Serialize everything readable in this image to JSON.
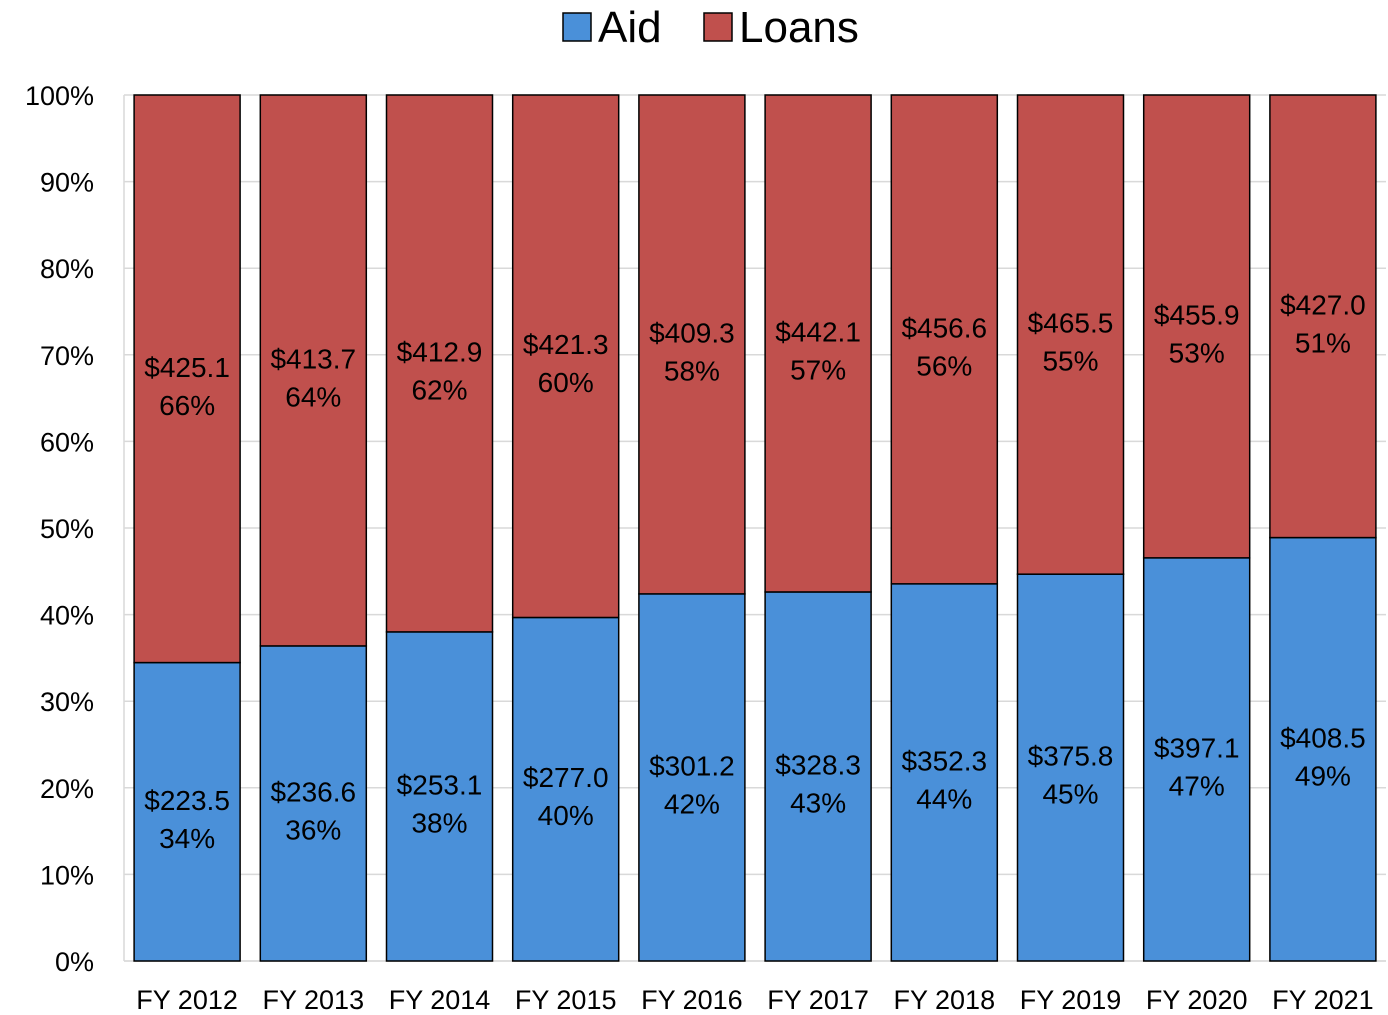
{
  "chart_data": {
    "type": "bar",
    "stacked": true,
    "normalized": true,
    "title": "",
    "xlabel": "",
    "ylabel": "",
    "categories": [
      "FY 2012",
      "FY 2013",
      "FY 2014",
      "FY 2015",
      "FY 2016",
      "FY 2017",
      "FY 2018",
      "FY 2019",
      "FY 2020",
      "FY 2021"
    ],
    "series": [
      {
        "name": "Aid",
        "color": "#4a90d9",
        "values": [
          223.5,
          236.6,
          253.1,
          277.0,
          301.2,
          328.3,
          352.3,
          375.8,
          397.1,
          408.5
        ],
        "value_labels": [
          "$223.5",
          "$236.6",
          "$253.1",
          "$277.0",
          "$301.2",
          "$328.3",
          "$352.3",
          "$375.8",
          "$397.1",
          "$408.5"
        ],
        "percent_labels": [
          "34%",
          "36%",
          "38%",
          "40%",
          "42%",
          "43%",
          "44%",
          "45%",
          "47%",
          "49%"
        ]
      },
      {
        "name": "Loans",
        "color": "#c0504d",
        "values": [
          425.1,
          413.7,
          412.9,
          421.3,
          409.3,
          442.1,
          456.6,
          465.5,
          455.9,
          427.0
        ],
        "value_labels": [
          "$425.1",
          "$413.7",
          "$412.9",
          "$421.3",
          "$409.3",
          "$442.1",
          "$456.6",
          "$465.5",
          "$455.9",
          "$427.0"
        ],
        "percent_labels": [
          "66%",
          "64%",
          "62%",
          "60%",
          "58%",
          "57%",
          "56%",
          "55%",
          "53%",
          "51%"
        ]
      }
    ],
    "ylim": [
      0,
      100
    ],
    "yticks": [
      "0%",
      "10%",
      "20%",
      "30%",
      "40%",
      "50%",
      "60%",
      "70%",
      "80%",
      "90%",
      "100%"
    ],
    "grid": true,
    "legend": "top-center"
  }
}
